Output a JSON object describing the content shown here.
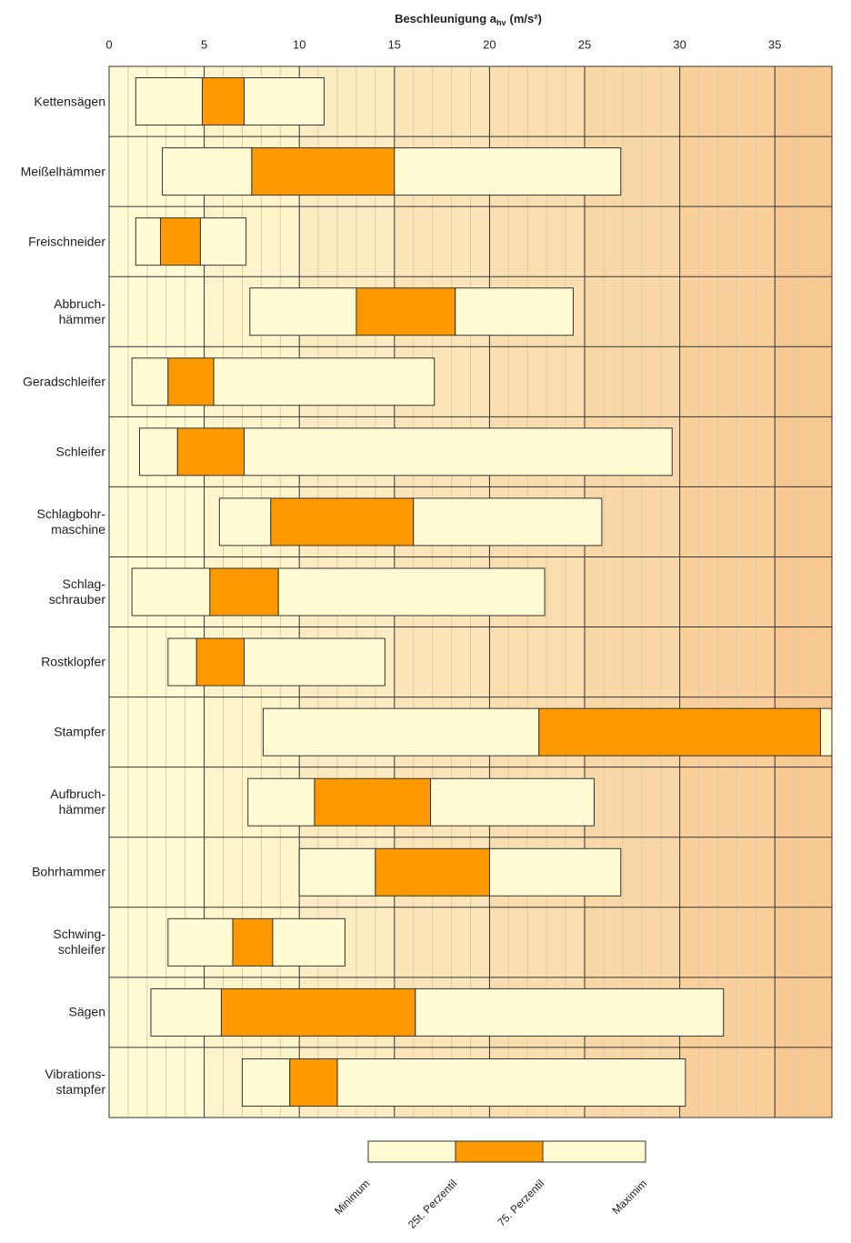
{
  "chart_data": {
    "type": "range-bar",
    "title": {
      "text": "Beschleunigung a",
      "subscript": "hv",
      "unit": "(m/s²)"
    },
    "categories": [
      "Kettensägen",
      "Meißelhämmer",
      "Freischneider",
      "Abbruch-\nhämmer",
      "Geradschleifer",
      "Schleifer",
      "Schlagbohr-\nmaschine",
      "Schlag-\nschrauber",
      "Rostklopfer",
      "Stampfer",
      "Aufbruch-\nhämmer",
      "Bohrhammer",
      "Schwing-\nschleifer",
      "Sägen",
      "Vibrations-\nstampfer"
    ],
    "series": [
      {
        "name": "Minimum",
        "values": [
          1.4,
          2.8,
          1.4,
          7.4,
          1.2,
          1.6,
          5.8,
          1.2,
          3.1,
          8.1,
          7.3,
          10.0,
          3.1,
          2.2,
          7.0
        ]
      },
      {
        "name": "25t. Perzentil",
        "values": [
          4.9,
          7.5,
          2.7,
          13.0,
          3.1,
          3.6,
          8.5,
          5.3,
          4.6,
          22.6,
          10.8,
          14.0,
          6.5,
          5.9,
          9.5
        ]
      },
      {
        "name": "75. Perzentil",
        "values": [
          7.1,
          15.0,
          4.8,
          18.2,
          5.5,
          7.1,
          16.0,
          8.9,
          7.1,
          37.4,
          16.9,
          20.0,
          8.6,
          16.1,
          12.0
        ]
      },
      {
        "name": "Maximim",
        "values": [
          11.3,
          26.9,
          7.2,
          24.4,
          17.1,
          29.6,
          25.9,
          22.9,
          14.5,
          38.0,
          25.5,
          26.9,
          12.4,
          32.3,
          30.3
        ]
      }
    ],
    "segment_colors": [
      "#fffbd2",
      "#ff9900",
      "#fffbd2"
    ],
    "xlim": [
      0,
      38
    ],
    "xticks": [
      0,
      5,
      10,
      15,
      20,
      25,
      30,
      35
    ],
    "band_colors": [
      "#fffbd5",
      "#f8c893"
    ],
    "grid": true
  }
}
